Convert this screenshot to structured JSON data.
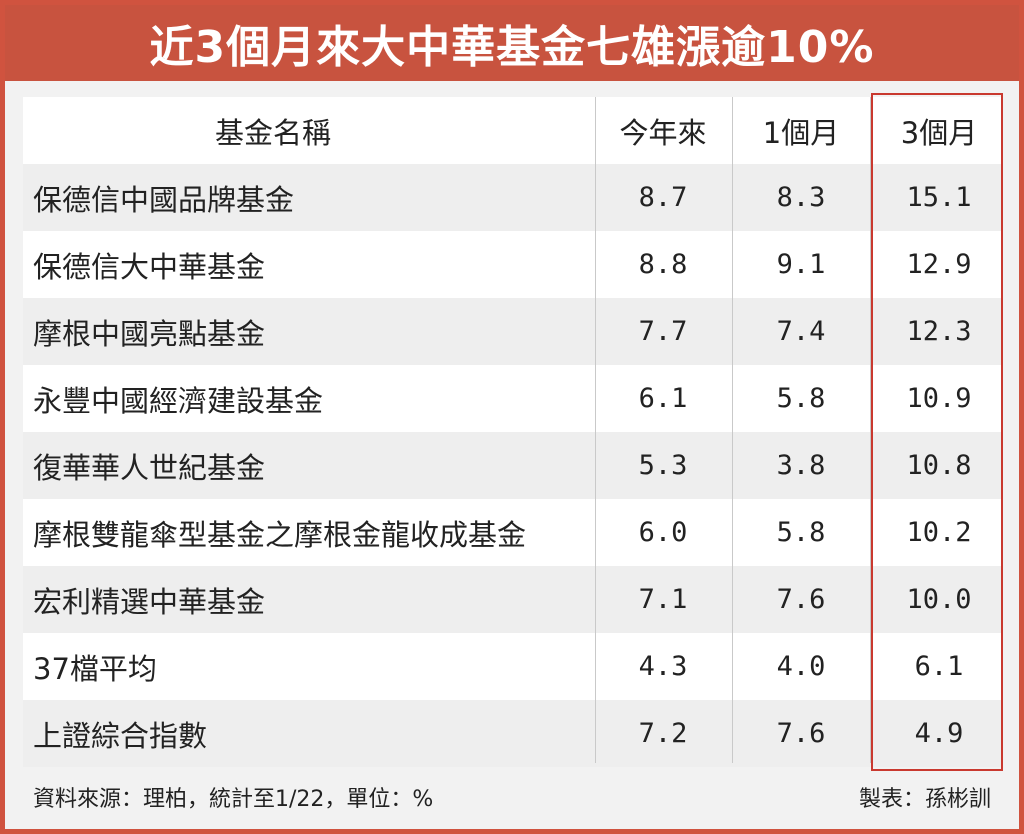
{
  "title": "近3個月來大中華基金七雄漲逾10%",
  "chart_data": {
    "type": "table",
    "columns": [
      "基金名稱",
      "今年來",
      "1個月",
      "3個月"
    ],
    "rows": [
      {
        "name": "保德信中國品牌基金",
        "ytd": "8.7",
        "m1": "8.3",
        "m3": "15.1"
      },
      {
        "name": "保德信大中華基金",
        "ytd": "8.8",
        "m1": "9.1",
        "m3": "12.9"
      },
      {
        "name": "摩根中國亮點基金",
        "ytd": "7.7",
        "m1": "7.4",
        "m3": "12.3"
      },
      {
        "name": "永豐中國經濟建設基金",
        "ytd": "6.1",
        "m1": "5.8",
        "m3": "10.9"
      },
      {
        "name": "復華華人世紀基金",
        "ytd": "5.3",
        "m1": "3.8",
        "m3": "10.8"
      },
      {
        "name": "摩根雙龍傘型基金之摩根金龍收成基金",
        "ytd": "6.0",
        "m1": "5.8",
        "m3": "10.2"
      },
      {
        "name": "宏利精選中華基金",
        "ytd": "7.1",
        "m1": "7.6",
        "m3": "10.0"
      },
      {
        "name": "37檔平均",
        "ytd": "4.3",
        "m1": "4.0",
        "m3": "6.1"
      },
      {
        "name": "上證綜合指數",
        "ytd": "7.2",
        "m1": "7.6",
        "m3": "4.9"
      }
    ],
    "highlighted_column": "3個月"
  },
  "footer": {
    "source": "資料來源：理柏，統計至1/22，單位：%",
    "credit": "製表：孫彬訓"
  },
  "colors": {
    "banner": "#c8533f",
    "highlight_border": "#c9392f",
    "row_alt": "#eeeeee"
  }
}
